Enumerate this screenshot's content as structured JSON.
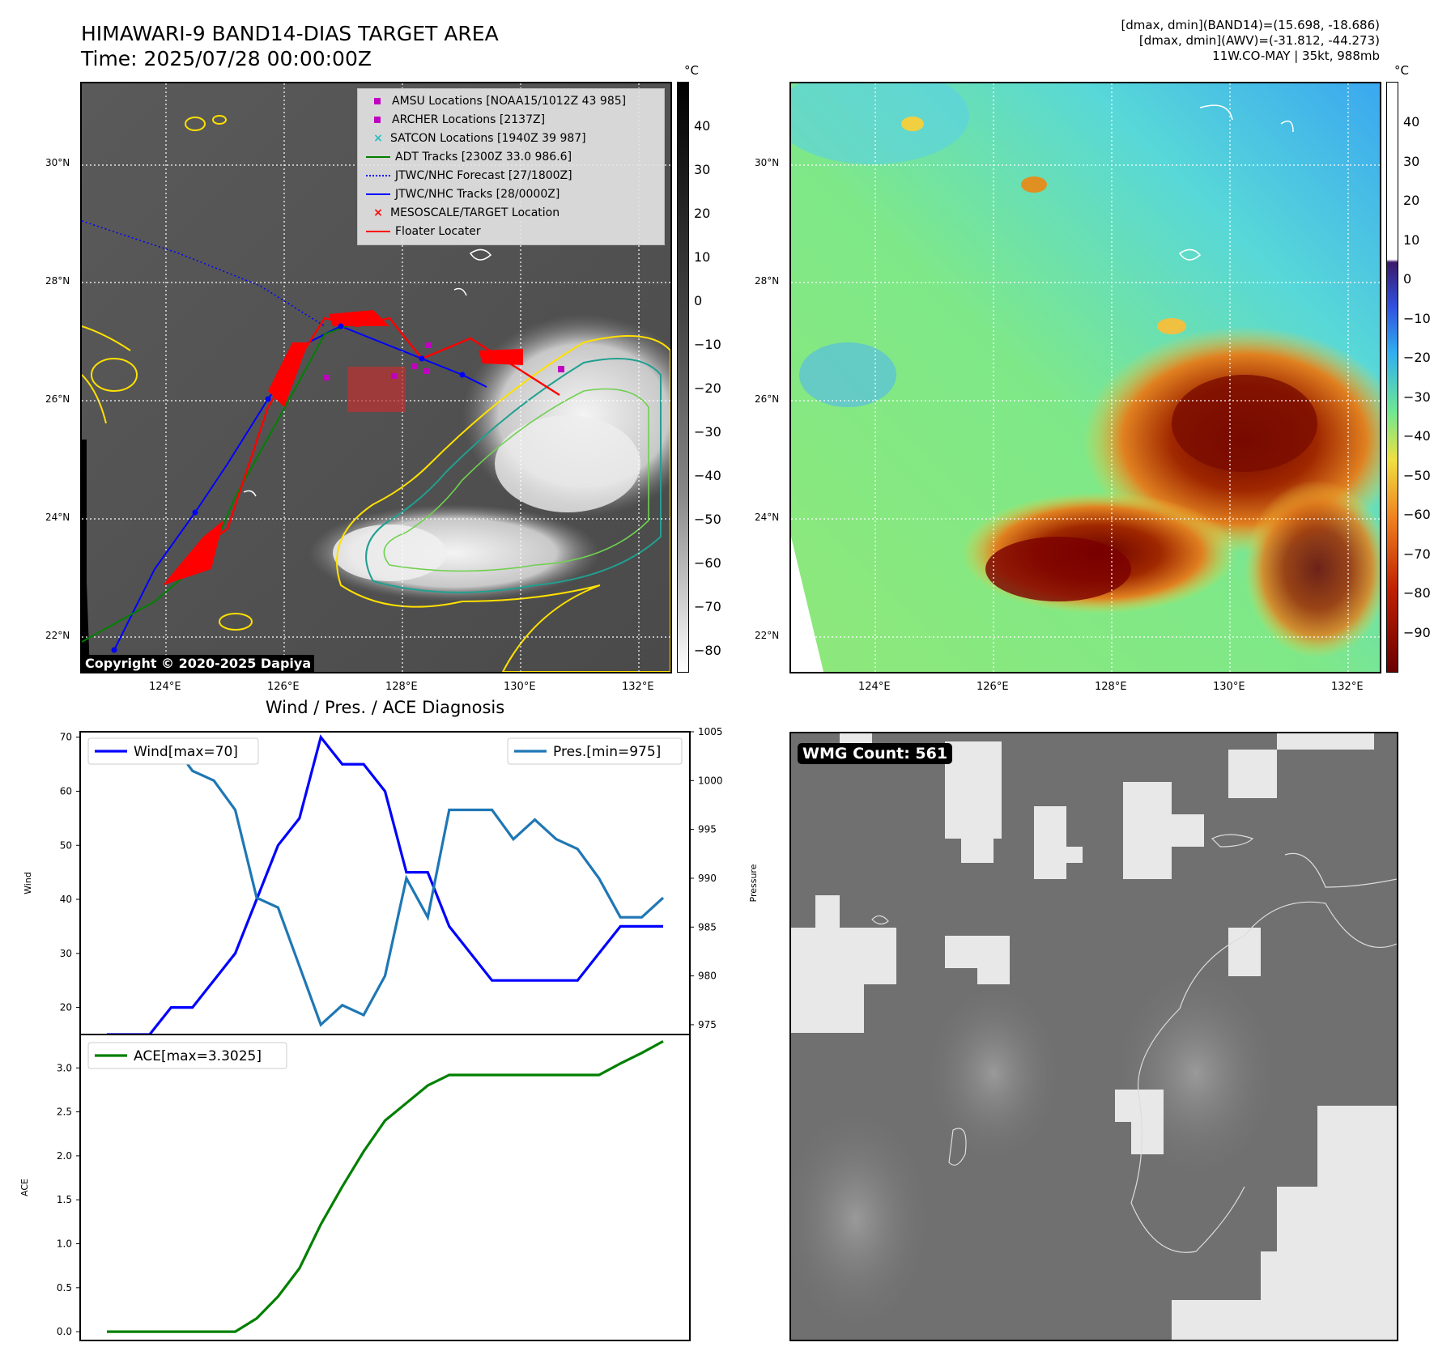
{
  "header": {
    "title_line1": "HIMAWARI-9 BAND14-DIAS TARGET AREA",
    "title_line2": "Time: 2025/07/28 00:00:00Z",
    "info_line1": "[dmax, dmin](BAND14)=(15.698, -18.686)",
    "info_line2": "[dmax, dmin](AWV)=(-31.812, -44.273)",
    "info_line3": "11W.CO-MAY | 35kt, 988mb"
  },
  "map": {
    "lat_labels": [
      "30°N",
      "28°N",
      "26°N",
      "24°N",
      "22°N"
    ],
    "lon_labels": [
      "124°E",
      "126°E",
      "128°E",
      "130°E",
      "132°E"
    ],
    "copyright": "Copyright © 2020-2025 Dapiya",
    "unit": "°C"
  },
  "legend": {
    "items": [
      {
        "label": "AMSU Locations [NOAA15/1012Z 43 985]",
        "color": "#c000c0",
        "marker": "square"
      },
      {
        "label": "ARCHER Locations [2137Z]",
        "color": "#c000c0",
        "marker": "square"
      },
      {
        "label": "SATCON Locations [1940Z 39 987]",
        "color": "#20c0c0",
        "marker": "x"
      },
      {
        "label": "ADT Tracks [2300Z 33.0 986.6]",
        "color": "#008000",
        "marker": "line"
      },
      {
        "label": "JTWC/NHC Forecast [27/1800Z]",
        "color": "#0000ff",
        "marker": "dotted"
      },
      {
        "label": "JTWC/NHC Tracks [28/0000Z]",
        "color": "#0000ff",
        "marker": "line-dot"
      },
      {
        "label": "MESOSCALE/TARGET Location",
        "color": "#ff0000",
        "marker": "x"
      },
      {
        "label": "Floater Locater",
        "color": "#ff0000",
        "marker": "line"
      }
    ]
  },
  "colorbar_gray": {
    "unit": "°C",
    "ticks": [
      "40",
      "30",
      "20",
      "10",
      "0",
      "−10",
      "−20",
      "−30",
      "−40",
      "−50",
      "−60",
      "−70",
      "−80"
    ]
  },
  "colorbar_color": {
    "unit": "°C",
    "ticks": [
      "40",
      "30",
      "20",
      "10",
      "0",
      "−10",
      "−20",
      "−30",
      "−40",
      "−50",
      "−60",
      "−70",
      "−80",
      "−90"
    ]
  },
  "diagnosis_title": "Wind / Pres. / ACE Diagnosis",
  "wmg_badge": "WMG Count: 561",
  "chart_data": [
    {
      "type": "line",
      "title": "Wind / Pres. / ACE Diagnosis",
      "ylabel": "Wind",
      "y2label": "Pressure",
      "ylim": [
        15,
        71
      ],
      "y2lim": [
        974,
        1005
      ],
      "yticks": [
        "70",
        "60",
        "50",
        "40",
        "30",
        "20"
      ],
      "y2ticks": [
        "1005",
        "1000",
        "995",
        "990",
        "985",
        "980",
        "975"
      ],
      "series": [
        {
          "name": "Wind[max=70]",
          "axis": "left",
          "color": "#0000ff",
          "values": [
            15,
            15,
            15,
            20,
            20,
            25,
            30,
            40,
            50,
            55,
            70,
            65,
            65,
            60,
            45,
            45,
            35,
            30,
            25,
            25,
            25,
            25,
            25,
            30,
            35,
            35,
            35
          ]
        },
        {
          "name": "Pres.[min=975]",
          "axis": "right",
          "color": "#1f77b4",
          "values": [
            1004,
            1004,
            1004,
            1004,
            1001,
            1000,
            997,
            988,
            987,
            981,
            975,
            977,
            976,
            980,
            990,
            986,
            997,
            997,
            997,
            994,
            996,
            994,
            993,
            990,
            986,
            986,
            988
          ]
        }
      ]
    },
    {
      "type": "line",
      "ylabel": "ACE",
      "ylim": [
        -0.1,
        3.38
      ],
      "yticks": [
        "3.0",
        "2.5",
        "2.0",
        "1.5",
        "1.0",
        "0.5",
        "0.0"
      ],
      "series": [
        {
          "name": "ACE[max=3.3025]",
          "color": "#008000",
          "values": [
            0,
            0,
            0,
            0,
            0,
            0,
            0,
            0.15,
            0.4,
            0.72,
            1.22,
            1.65,
            2.05,
            2.4,
            2.6,
            2.8,
            2.92,
            2.92,
            2.92,
            2.92,
            2.92,
            2.92,
            2.92,
            2.92,
            3.05,
            3.17,
            3.3025
          ]
        }
      ]
    }
  ]
}
